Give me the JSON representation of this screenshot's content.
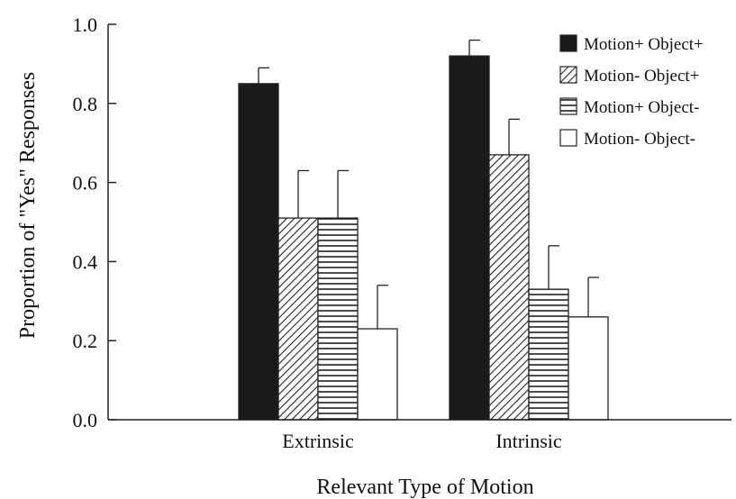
{
  "chart_data": {
    "type": "bar",
    "categories": [
      "Extrinsic",
      "Intrinsic"
    ],
    "series": [
      {
        "name": "Motion+ Object+",
        "values": [
          0.85,
          0.92
        ],
        "errors": [
          0.04,
          0.04
        ],
        "pattern": "solid"
      },
      {
        "name": "Motion- Object+",
        "values": [
          0.51,
          0.67
        ],
        "errors": [
          0.12,
          0.09
        ],
        "pattern": "diagonal"
      },
      {
        "name": "Motion+ Object-",
        "values": [
          0.51,
          0.33
        ],
        "errors": [
          0.12,
          0.11
        ],
        "pattern": "horizontal"
      },
      {
        "name": "Motion- Object-",
        "values": [
          0.23,
          0.26
        ],
        "errors": [
          0.11,
          0.1
        ],
        "pattern": "empty"
      }
    ],
    "xlabel": "Relevant Type of Motion",
    "ylabel": "Proportion of \"Yes\" Responses",
    "ylim": [
      0,
      1.0
    ],
    "yticks": [
      "0.0",
      "0.2",
      "0.4",
      "0.6",
      "0.8",
      "1.0"
    ],
    "grid": false,
    "legend": "top-right",
    "colors": {
      "bar_fill": "#1a1a1a",
      "stroke": "#222222",
      "background": "#ffffff"
    }
  }
}
